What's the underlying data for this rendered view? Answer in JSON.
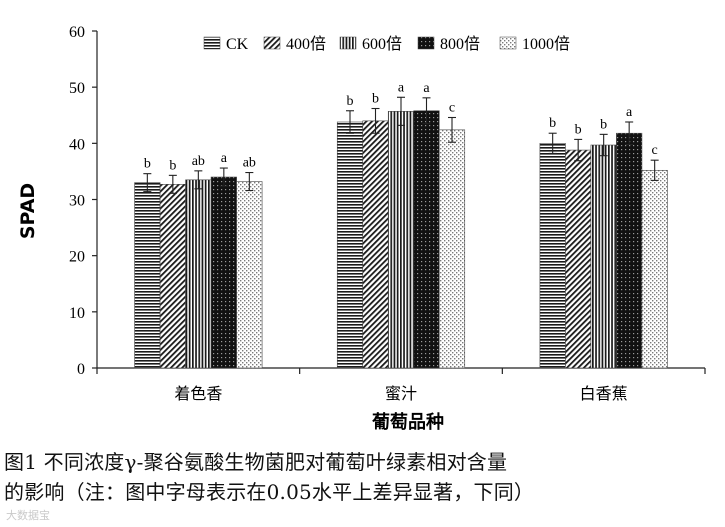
{
  "chart_data": {
    "type": "bar",
    "ylabel": "SPAD",
    "xlabel": "葡萄品种",
    "ylim": [
      0,
      60
    ],
    "yticks": [
      0,
      10,
      20,
      30,
      40,
      50,
      60
    ],
    "categories": [
      "着色香",
      "蜜汁",
      "白香蕉"
    ],
    "legend_position": "top-right",
    "error_bars": true,
    "series": [
      {
        "name": "CK",
        "pattern": "horizontal-lines",
        "values": [
          33.0,
          43.8,
          40.0
        ],
        "errors": [
          1.6,
          2.0,
          1.8
        ],
        "letters": [
          "b",
          "b",
          "b"
        ]
      },
      {
        "name": "400倍",
        "pattern": "diagonal-lines",
        "values": [
          32.7,
          44.0,
          38.8
        ],
        "errors": [
          1.6,
          2.2,
          1.9
        ],
        "letters": [
          "b",
          "b",
          "b"
        ]
      },
      {
        "name": "600倍",
        "pattern": "vertical-lines",
        "values": [
          33.5,
          45.7,
          39.7
        ],
        "errors": [
          1.6,
          2.5,
          1.9
        ],
        "letters": [
          "ab",
          "a",
          "b"
        ]
      },
      {
        "name": "800倍",
        "pattern": "dark-dotted",
        "values": [
          34.0,
          45.8,
          41.8
        ],
        "errors": [
          1.6,
          2.3,
          2.0
        ],
        "letters": [
          "a",
          "a",
          "a"
        ]
      },
      {
        "name": "1000倍",
        "pattern": "light-dotted",
        "values": [
          33.2,
          42.4,
          35.2
        ],
        "errors": [
          1.6,
          2.2,
          1.8
        ],
        "letters": [
          "ab",
          "c",
          "c"
        ]
      }
    ]
  },
  "caption": {
    "line1": "图1  不同浓度γ-聚谷氨酸生物菌肥对葡萄叶绿素相对含量",
    "line2": "的影响（注：图中字母表示在0.05水平上差异显著，下同）"
  },
  "watermark": "大数据宝"
}
